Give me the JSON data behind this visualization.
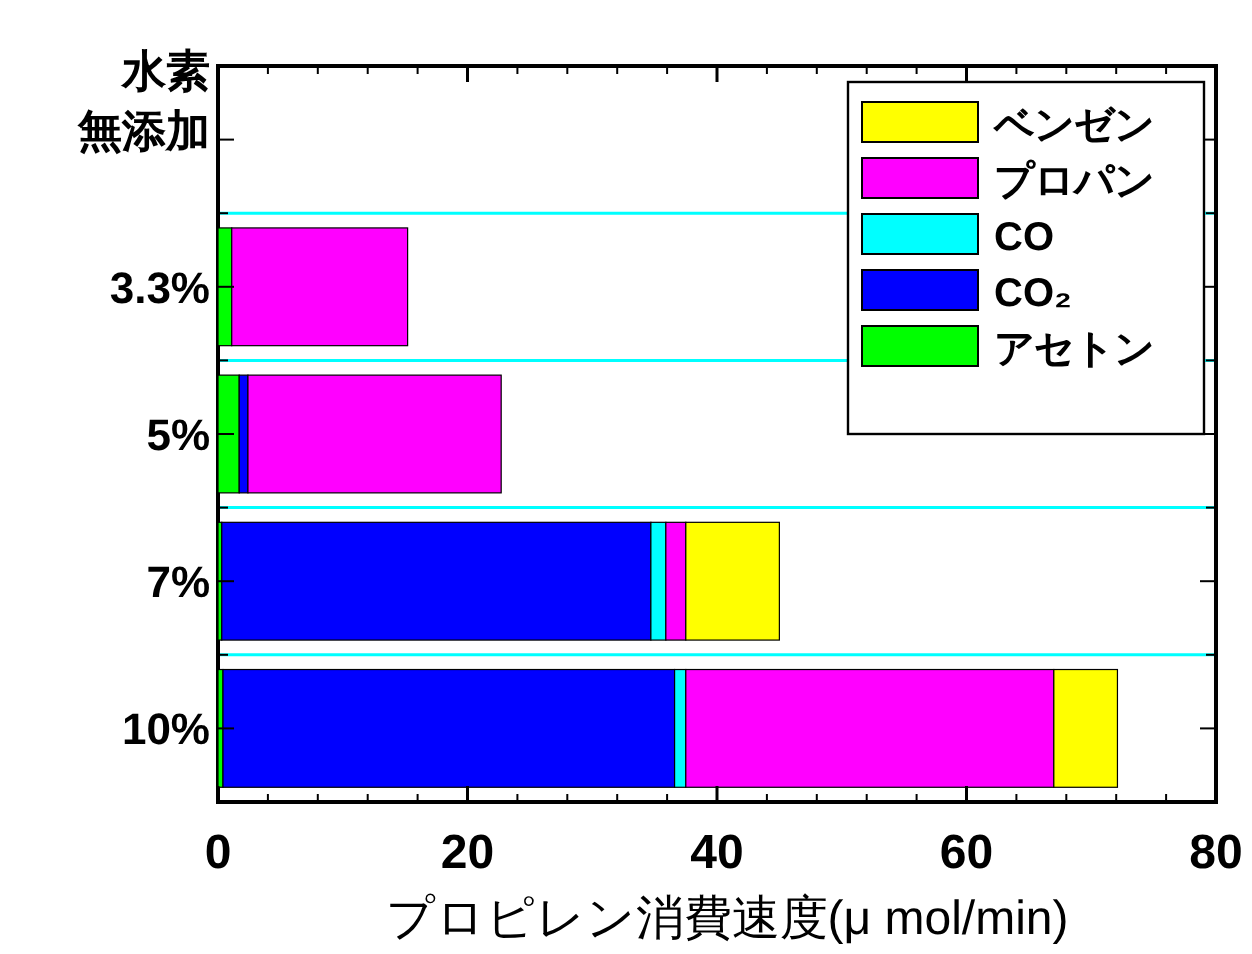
{
  "chart_data": {
    "type": "bar",
    "orientation": "horizontal",
    "stacked": true,
    "categories": [
      "水素無添加",
      "3.3%",
      "5%",
      "7%",
      "10%"
    ],
    "xlabel": "プロピレン消費速度(μ mol/min)",
    "xlim": [
      0,
      80
    ],
    "xticks": [
      0,
      20,
      40,
      60,
      80
    ],
    "grid": "y",
    "legend": "top right",
    "series": [
      {
        "name": "アセトン",
        "color": "#00ff00",
        "values": [
          null,
          1.1,
          1.7,
          0.3,
          0.4
        ]
      },
      {
        "name": "CO₂",
        "color": "#0000ff",
        "values": [
          null,
          null,
          0.7,
          34.4,
          36.2
        ]
      },
      {
        "name": "CO",
        "color": "#00ffff",
        "values": [
          null,
          null,
          null,
          1.2,
          0.9
        ]
      },
      {
        "name": "プロパン",
        "color": "#ff00ff",
        "values": [
          null,
          14.1,
          20.3,
          1.6,
          29.5
        ]
      },
      {
        "name": "ベンゼン",
        "color": "#ffff00",
        "values": [
          null,
          null,
          null,
          7.5,
          5.1
        ]
      }
    ]
  }
}
